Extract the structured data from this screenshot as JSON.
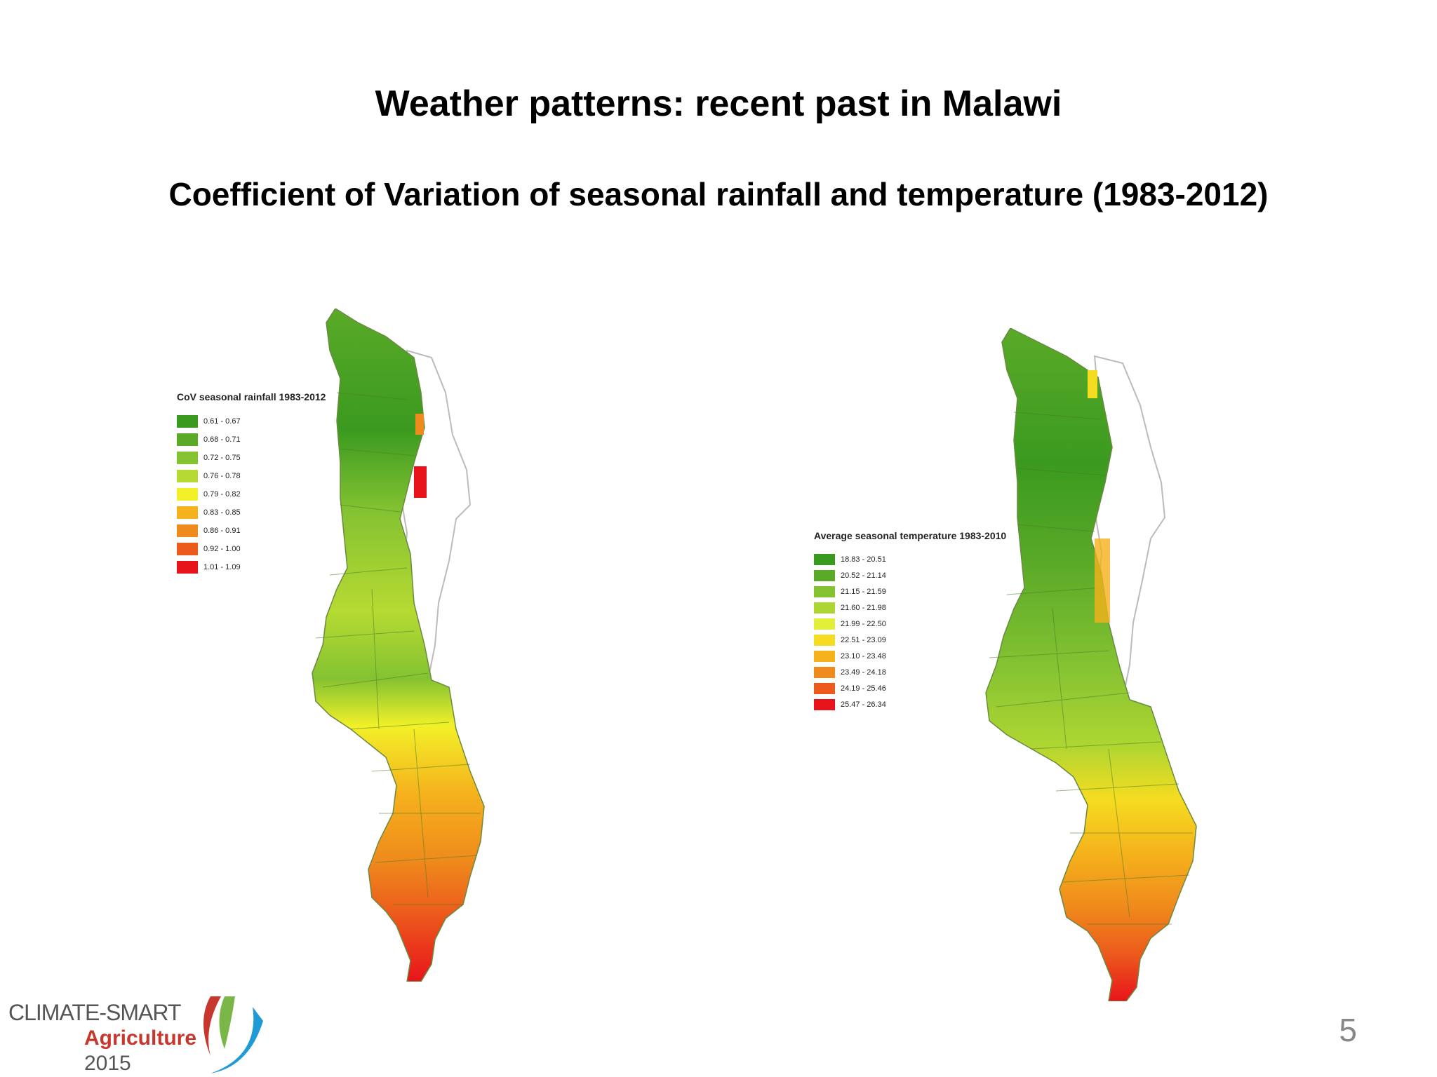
{
  "slide": {
    "title": "Weather patterns: recent past in Malawi",
    "subtitle": "Coefficient of Variation of seasonal rainfall and temperature (1983-2012)",
    "page_number": "5"
  },
  "logo": {
    "line1": "CLIMATE-SMART",
    "line2": "Agriculture",
    "line3": "2015",
    "colors": {
      "red": "#c8372d",
      "green": "#7ab648",
      "blue": "#1e9bd7",
      "gray": "#555555"
    }
  },
  "maps": [
    {
      "id": "rainfall",
      "legend_title": "CoV seasonal rainfall 1983-2012",
      "classes": [
        {
          "label": "0.61 - 0.67",
          "color": "#3a9a1f"
        },
        {
          "label": "0.68 - 0.71",
          "color": "#5aaa28"
        },
        {
          "label": "0.72 - 0.75",
          "color": "#84c232"
        },
        {
          "label": "0.76 - 0.78",
          "color": "#b6da32"
        },
        {
          "label": "0.79 - 0.82",
          "color": "#f2f028"
        },
        {
          "label": "0.83 - 0.85",
          "color": "#f5b21c"
        },
        {
          "label": "0.86 - 0.91",
          "color": "#ef8a1c"
        },
        {
          "label": "0.92 - 1.00",
          "color": "#ec5a1c"
        },
        {
          "label": "1.01 - 1.09",
          "color": "#e8141c"
        }
      ]
    },
    {
      "id": "temperature",
      "legend_title": "Average seasonal temperature 1983-2010",
      "classes": [
        {
          "label": "18.83 - 20.51",
          "color": "#3a9a1f"
        },
        {
          "label": "20.52 - 21.14",
          "color": "#5aaa28"
        },
        {
          "label": "21.15 - 21.59",
          "color": "#84c232"
        },
        {
          "label": "21.60 - 21.98",
          "color": "#aed632"
        },
        {
          "label": "21.99 - 22.50",
          "color": "#e2ee3a"
        },
        {
          "label": "22.51 - 23.09",
          "color": "#f5dc20"
        },
        {
          "label": "23.10 - 23.48",
          "color": "#f5b21c"
        },
        {
          "label": "23.49 - 24.18",
          "color": "#ef8a1c"
        },
        {
          "label": "24.19 - 25.46",
          "color": "#ec5a1c"
        },
        {
          "label": "25.47 - 26.34",
          "color": "#e8141c"
        }
      ]
    }
  ]
}
